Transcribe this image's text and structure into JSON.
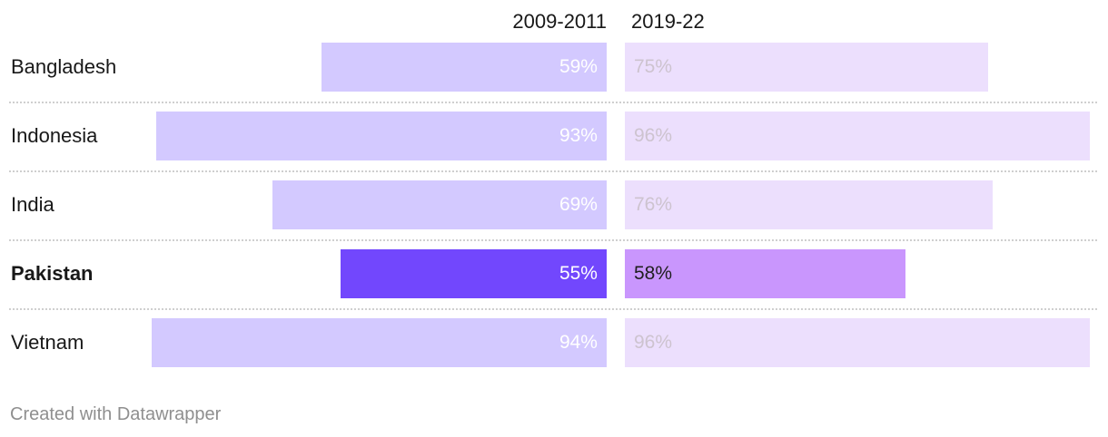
{
  "chart_data": {
    "type": "bar",
    "columns": [
      "2009-2011",
      "2019-22"
    ],
    "categories": [
      "Bangladesh",
      "Indonesia",
      "India",
      "Pakistan",
      "Vietnam"
    ],
    "series": [
      {
        "name": "2009-2011",
        "values": [
          59,
          93,
          69,
          55,
          94
        ],
        "labels": [
          "59%",
          "93%",
          "69%",
          "55%",
          "94%"
        ]
      },
      {
        "name": "2019-22",
        "values": [
          75,
          96,
          76,
          58,
          96
        ],
        "labels": [
          "75%",
          "96%",
          "76%",
          "58%",
          "96%"
        ]
      }
    ],
    "highlight": "Pakistan",
    "xlim": [
      0,
      100
    ],
    "colors": {
      "left": "#d3c9ff",
      "right": "#ecdffd",
      "left_highlight": "#7247fd",
      "right_highlight": "#c996fd"
    }
  },
  "footer": "Created with Datawrapper"
}
